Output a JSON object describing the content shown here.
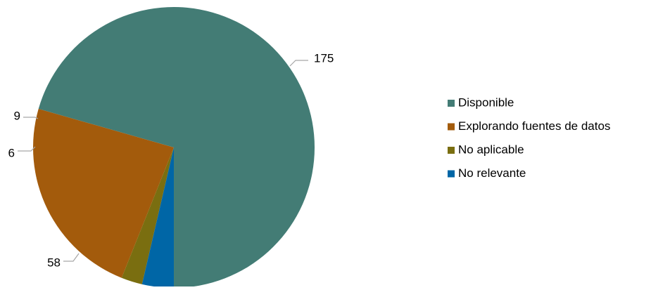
{
  "chart_data": {
    "type": "pie",
    "title": "",
    "slices": [
      {
        "label": "Disponible",
        "value": 175,
        "color": "#437c75"
      },
      {
        "label": "Explorando fuentes de datos",
        "value": 58,
        "color": "#a35b0c"
      },
      {
        "label": "No aplicable",
        "value": 6,
        "color": "#7a6e10"
      },
      {
        "label": "No relevante",
        "value": 9,
        "color": "#0066a6"
      }
    ],
    "data_labels": [
      "175",
      "58",
      "6",
      "9"
    ],
    "legend_position": "right",
    "start_angle_deg": 180,
    "direction": "clockwise-from-bottom"
  }
}
